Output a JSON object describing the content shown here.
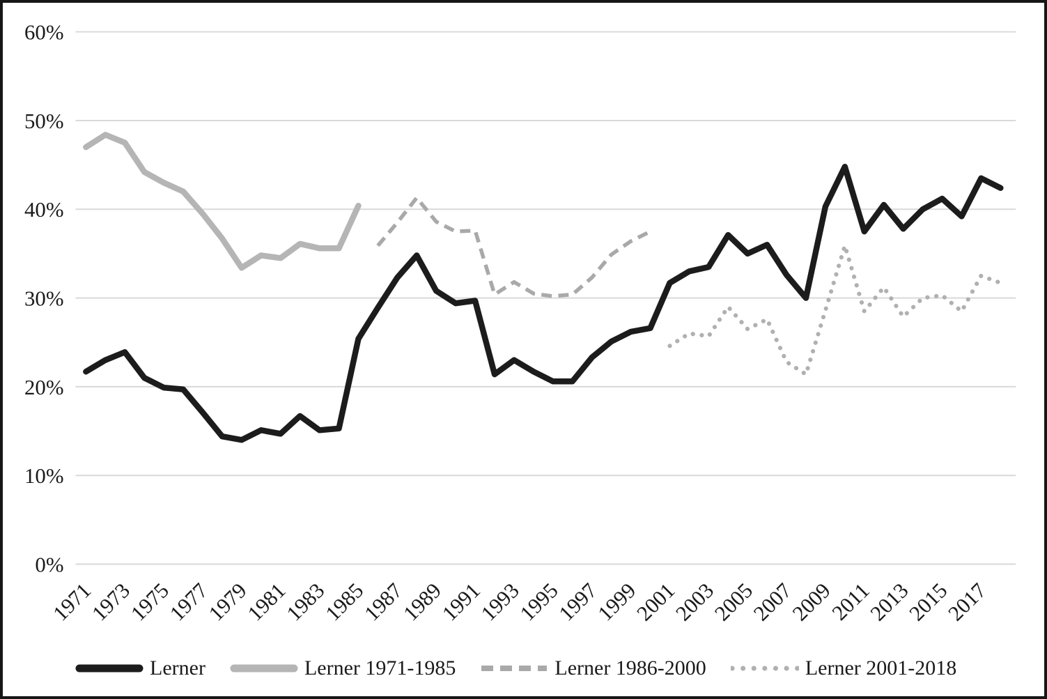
{
  "figure": {
    "background": "#ffffff",
    "frame_color": "#161616",
    "gridline_color": "#d9d9d9",
    "axis_text_color": "#1a1a1a"
  },
  "chart_data": {
    "type": "line",
    "title": "",
    "xlabel": "",
    "ylabel": "",
    "ylim": [
      0,
      60
    ],
    "grid": "horizontal",
    "legend_position": "bottom",
    "y_ticks": [
      {
        "label": "0%",
        "value": 0
      },
      {
        "label": "10%",
        "value": 10
      },
      {
        "label": "20%",
        "value": 20
      },
      {
        "label": "30%",
        "value": 30
      },
      {
        "label": "40%",
        "value": 40
      },
      {
        "label": "50%",
        "value": 50
      },
      {
        "label": "60%",
        "value": 60
      }
    ],
    "x_tick_labels": [
      "1971",
      "1973",
      "1975",
      "1977",
      "1979",
      "1981",
      "1983",
      "1985",
      "1987",
      "1989",
      "1991",
      "1993",
      "1995",
      "1997",
      "1999",
      "2001",
      "2003",
      "2005",
      "2007",
      "2009",
      "2011",
      "2013",
      "2015",
      "2017"
    ],
    "x_range": [
      1971,
      2018
    ],
    "series": [
      {
        "name": "Lerner",
        "style": "solid",
        "color": "#1c1c1c",
        "width": 8.5,
        "start_year": 1971,
        "values": [
          21.7,
          23.0,
          23.9,
          21.0,
          19.9,
          19.7,
          17.1,
          14.4,
          14.0,
          15.1,
          14.7,
          16.7,
          15.1,
          15.3,
          25.4,
          28.9,
          32.3,
          34.8,
          30.8,
          29.4,
          29.7,
          21.4,
          23.0,
          21.7,
          20.6,
          20.6,
          23.3,
          25.1,
          26.2,
          26.6,
          31.7,
          33.0,
          33.5,
          37.1,
          35.0,
          36.0,
          32.6,
          30.0,
          40.3,
          44.8,
          37.5,
          40.5,
          37.8,
          40.0,
          41.2,
          39.2,
          43.5,
          42.4
        ]
      },
      {
        "name": "Lerner 1971-1985",
        "style": "solid",
        "color": "#b5b5b5",
        "width": 8.5,
        "start_year": 1971,
        "values": [
          47.0,
          48.4,
          47.5,
          44.2,
          43.0,
          42.0,
          39.5,
          36.7,
          33.4,
          34.8,
          34.5,
          36.1,
          35.6,
          35.6,
          40.4
        ]
      },
      {
        "name": "Lerner 1986-2000",
        "style": "dashed",
        "color": "#a9a9a9",
        "width": 5.5,
        "start_year": 1986,
        "values": [
          35.9,
          38.5,
          41.3,
          38.6,
          37.5,
          37.6,
          30.4,
          31.8,
          30.5,
          30.2,
          30.4,
          32.3,
          34.9,
          36.4,
          37.5
        ]
      },
      {
        "name": "Lerner 2001-2018",
        "style": "dotted",
        "color": "#b0b0b0",
        "width": 6.2,
        "start_year": 2001,
        "values": [
          24.6,
          26.0,
          25.7,
          29.0,
          26.5,
          27.6,
          22.8,
          21.4,
          28.6,
          35.9,
          28.5,
          31.2,
          27.9,
          30.0,
          30.3,
          28.5,
          32.5,
          31.7
        ]
      }
    ]
  },
  "legend": {
    "items": [
      {
        "label": "Lerner"
      },
      {
        "label": "Lerner 1971-1985"
      },
      {
        "label": "Lerner 1986-2000"
      },
      {
        "label": "Lerner 2001-2018"
      }
    ]
  }
}
